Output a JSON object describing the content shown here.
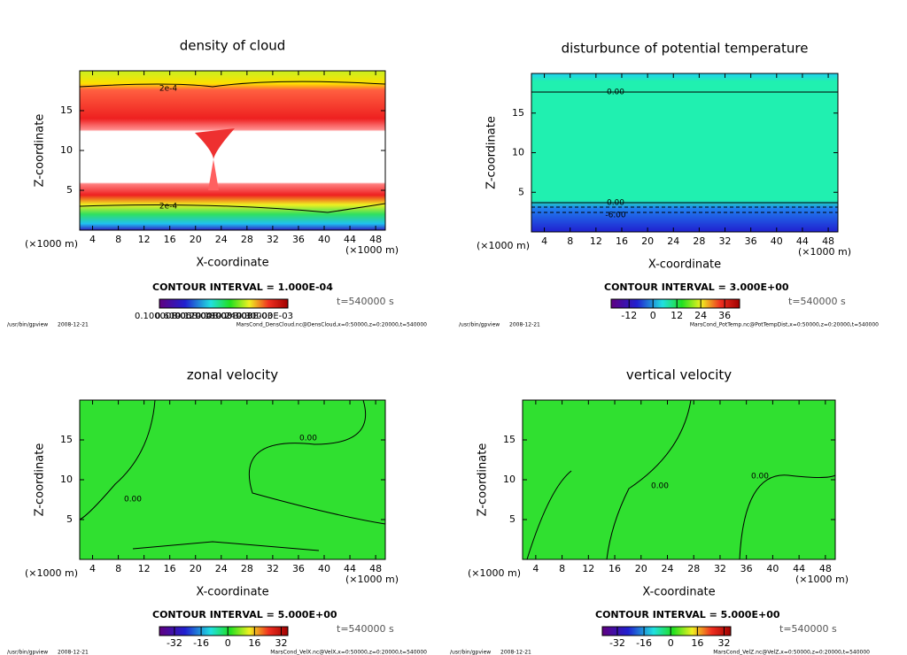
{
  "chart_data": [
    {
      "type": "contour",
      "title": "density of cloud",
      "x_label": "X-coordinate",
      "y_label": "Z-coordinate",
      "x_unit": "(×1000 m)",
      "xlim": [
        2,
        49.5
      ],
      "xticks": [
        4,
        8,
        12,
        16,
        20,
        24,
        28,
        32,
        36,
        40,
        44,
        48
      ],
      "ylim": [
        0,
        20
      ],
      "yticks": [
        5,
        10,
        15
      ],
      "contour_labels": [
        "2e-4",
        "2e-4"
      ],
      "contour_interval": "CONTOUR INTERVAL = 1.000E-04",
      "time": "t=540000 s",
      "colorbar_ticks": [
        "0.10000E-06",
        "0.60000E-04",
        "0.12000E-03",
        "0.18000E-03",
        "0.24000E-03",
        "0.30000E-03"
      ],
      "footer_left": "/usr/bin/gpview",
      "footer_date": "2008-12-21",
      "footer_right": "MarsCond_DensCloud.nc@DensCloud,x=0:50000,z=0:20000,t=540000"
    },
    {
      "type": "contour",
      "title": "disturbunce of potential temperature",
      "x_label": "X-coordinate",
      "y_label": "Z-coordinate",
      "x_unit": "(×1000 m)",
      "xlim": [
        2,
        49.5
      ],
      "xticks": [
        4,
        8,
        12,
        16,
        20,
        24,
        28,
        32,
        36,
        40,
        44,
        48
      ],
      "ylim": [
        0,
        20
      ],
      "yticks": [
        5,
        10,
        15
      ],
      "contour_labels": [
        "0.00",
        "0.00",
        "-6.00"
      ],
      "contour_interval": "CONTOUR INTERVAL = 3.000E+00",
      "time": "t=540000 s",
      "cblim": [
        -21,
        43.5
      ],
      "colorbar_ticks": [
        -12,
        0,
        12,
        24,
        36
      ],
      "footer_left": "/usr/bin/gpview",
      "footer_date": "2008-12-21",
      "footer_right": "MarsCond_PotTemp.nc@PotTempDist,x=0:50000,z=0:20000,t=540000"
    },
    {
      "type": "contour",
      "title": "zonal velocity",
      "x_label": "X-coordinate",
      "y_label": "Z-coordinate",
      "x_unit": "(×1000 m)",
      "xlim": [
        2,
        49.5
      ],
      "xticks": [
        4,
        8,
        12,
        16,
        20,
        24,
        28,
        32,
        36,
        40,
        44,
        48
      ],
      "ylim": [
        0,
        20
      ],
      "yticks": [
        5,
        10,
        15
      ],
      "contour_labels": [
        "0.00",
        "0.00"
      ],
      "contour_interval": "CONTOUR INTERVAL = 5.000E+00",
      "time": "t=540000 s",
      "cblim": [
        -41,
        36
      ],
      "colorbar_ticks": [
        -32,
        -16,
        0,
        16,
        32
      ],
      "footer_left": "/usr/bin/gpview",
      "footer_date": "2008-12-21",
      "footer_right": "MarsCond_VelX.nc@VelX,x=0:50000,z=0:20000,t=540000"
    },
    {
      "type": "contour",
      "title": "vertical velocity",
      "x_label": "X-coordinate",
      "y_label": "Z-coordinate",
      "x_unit": "(×1000 m)",
      "xlim": [
        2,
        49.5
      ],
      "xticks": [
        4,
        8,
        12,
        16,
        20,
        24,
        28,
        32,
        36,
        40,
        44,
        48
      ],
      "ylim": [
        0,
        20
      ],
      "yticks": [
        5,
        10,
        15
      ],
      "contour_labels": [
        "0.00",
        "0.00"
      ],
      "contour_interval": "CONTOUR INTERVAL = 5.000E+00",
      "time": "t=540000 s",
      "cblim": [
        -41,
        36
      ],
      "colorbar_ticks": [
        -32,
        -16,
        0,
        16,
        32
      ],
      "footer_left": "/usr/bin/gpview",
      "footer_date": "2008-12-21",
      "footer_right": "MarsCond_VelZ.nc@VelZ,x=0:50000,z=0:20000,t=540000"
    }
  ]
}
